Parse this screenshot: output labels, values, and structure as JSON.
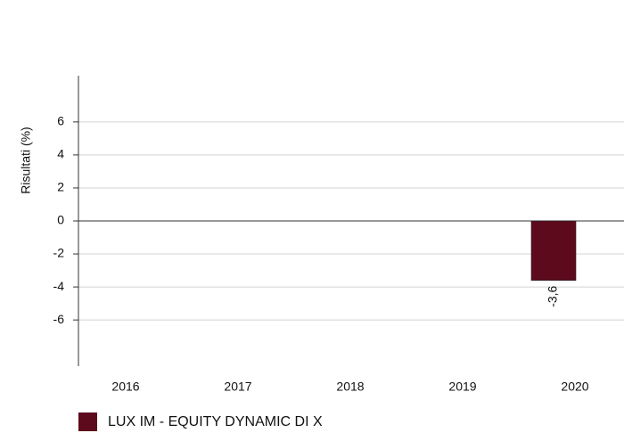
{
  "chart_data": {
    "type": "bar",
    "y_label": "Risultati (%)",
    "categories": [
      "2016",
      "2017",
      "2018",
      "2019",
      "2020"
    ],
    "series": [
      {
        "name": "LUX IM - EQUITY DYNAMIC DI X",
        "color": "#5c0a1c",
        "values": [
          null,
          null,
          null,
          null,
          -3.6
        ],
        "value_labels": [
          null,
          null,
          null,
          null,
          "-3,6"
        ]
      }
    ],
    "ylim": [
      -8.8,
      8.8
    ],
    "yticks": [
      -6,
      -4,
      -2,
      0,
      2,
      4,
      6
    ],
    "grid": true,
    "legend": "bottom"
  }
}
